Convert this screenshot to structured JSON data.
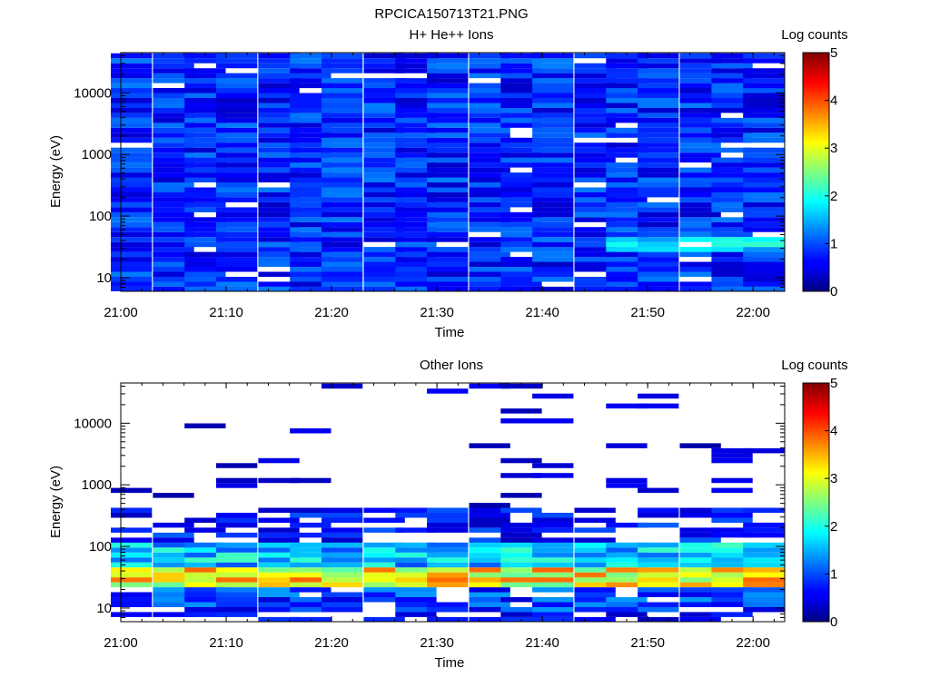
{
  "figure": {
    "title": "RPCICA150713T21.PNG"
  },
  "chart_data": [
    {
      "type": "heatmap",
      "title": "H+ He++ Ions",
      "xlabel": "Time",
      "ylabel": "Energy (eV)",
      "x_ticks": [
        "21:00",
        "21:10",
        "21:20",
        "21:30",
        "21:40",
        "21:50",
        "22:00"
      ],
      "xlim": [
        "21:00",
        "22:03"
      ],
      "y_scale": "log",
      "y_ticks": [
        10,
        100,
        1000,
        10000
      ],
      "ylim": [
        6,
        45000
      ],
      "colorbar": {
        "label": "Log counts",
        "range": [
          0,
          5
        ],
        "ticks": [
          0,
          1,
          2,
          3,
          4,
          5
        ],
        "colormap": "jet"
      },
      "time_bins": [
        "21:01",
        "21:05",
        "21:08",
        "21:11",
        "21:15",
        "21:18",
        "21:21",
        "21:25",
        "21:28",
        "21:31",
        "21:35",
        "21:38",
        "21:41",
        "21:45",
        "21:48",
        "21:51",
        "21:55",
        "21:58",
        "22:01"
      ],
      "energy_levels": {
        "count": 48,
        "min": 6.5,
        "max": 40000,
        "spacing": "log"
      },
      "summary": "Mostly low counts (0.3-1.3 log) across all energies, slightly elevated (1.5-2.2) near 30-40 eV after 21:48."
    },
    {
      "type": "heatmap",
      "title": "Other Ions",
      "xlabel": "Time",
      "ylabel": "Energy (eV)",
      "x_ticks": [
        "21:00",
        "21:10",
        "21:20",
        "21:30",
        "21:40",
        "21:50",
        "22:00"
      ],
      "xlim": [
        "21:00",
        "22:03"
      ],
      "y_scale": "log",
      "y_ticks": [
        10,
        100,
        1000,
        10000
      ],
      "ylim": [
        6,
        45000
      ],
      "colorbar": {
        "label": "Log counts",
        "range": [
          0,
          5
        ],
        "ticks": [
          0,
          1,
          2,
          3,
          4,
          5
        ],
        "colormap": "jet"
      },
      "time_bins": [
        "21:01",
        "21:05",
        "21:08",
        "21:11",
        "21:15",
        "21:18",
        "21:21",
        "21:25",
        "21:28",
        "21:31",
        "21:35",
        "21:38",
        "21:41",
        "21:45",
        "21:48",
        "21:51",
        "21:55",
        "21:58",
        "22:01"
      ],
      "energy_levels": {
        "count": 48,
        "min": 6.5,
        "max": 40000,
        "spacing": "log"
      },
      "summary": "Strong band (2.5-4 log) at 20-50 eV, moderate counts to ~300 eV, sparse single-count lines above 1 keV."
    }
  ]
}
